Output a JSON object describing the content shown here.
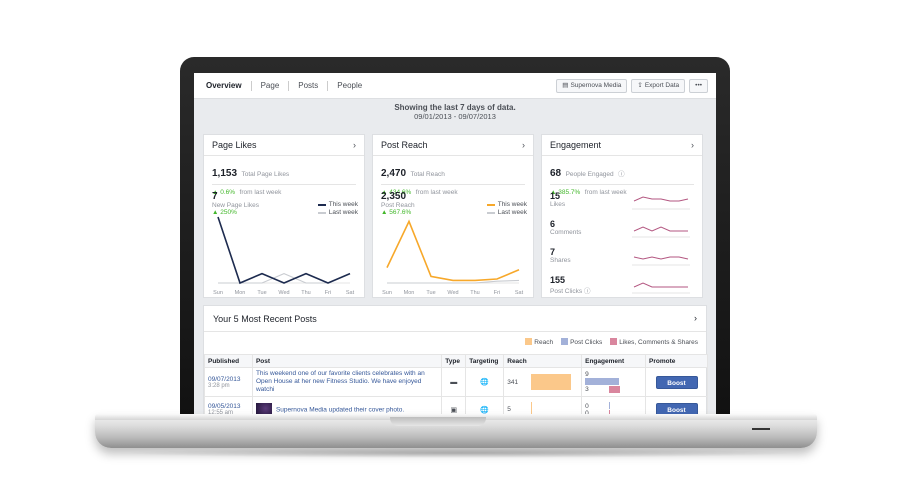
{
  "tabs": [
    "Overview",
    "Page",
    "Posts",
    "People"
  ],
  "tools": {
    "page_button": "Supernova Media",
    "export_button": "Export Data",
    "more": "•••"
  },
  "range": {
    "title": "Showing the last 7 days of data.",
    "dates": "09/01/2013 - 09/07/2013"
  },
  "page_likes": {
    "title": "Page Likes",
    "total": "1,153",
    "total_label": "Total Page Likes",
    "total_change": "▲ 0.6%",
    "total_change_suffix": "from last week",
    "new": "7",
    "new_label": "New Page Likes",
    "new_change": "▲ 250%",
    "legend_this": "This week",
    "legend_last": "Last week",
    "days": [
      "Sun",
      "Mon",
      "Tue",
      "Wed",
      "Thu",
      "Fri",
      "Sat"
    ],
    "this_week": [
      7,
      0,
      1,
      0,
      1,
      0,
      1
    ],
    "last_week": [
      0,
      0,
      0,
      1,
      0,
      0,
      1
    ],
    "ymax": 7,
    "colors": {
      "this": "#1d2b4f",
      "last": "#c9ccd1"
    }
  },
  "post_reach": {
    "title": "Post Reach",
    "total": "2,470",
    "total_label": "Total Reach",
    "total_change": "▲ 434.6%",
    "total_change_suffix": "from last week",
    "new": "2,350",
    "new_label": "Post Reach",
    "new_change": "▲ 567.6%",
    "legend_this": "This week",
    "legend_last": "Last week",
    "days": [
      "Sun",
      "Mon",
      "Tue",
      "Wed",
      "Thu",
      "Fri",
      "Sat"
    ],
    "this_week": [
      350,
      1400,
      150,
      60,
      60,
      90,
      300
    ],
    "last_week": [
      0,
      0,
      0,
      0,
      0,
      40,
      60
    ],
    "ymax": 1500,
    "colors": {
      "this": "#f7a82a",
      "last": "#c9ccd1"
    }
  },
  "engagement": {
    "title": "Engagement",
    "total": "68",
    "total_label": "People Engaged",
    "total_change": "▲ 385.7%",
    "total_change_suffix": "from last week",
    "metrics": [
      {
        "value": "15",
        "label": "Likes",
        "trend": [
          4,
          6,
          5,
          5,
          4,
          4,
          5
        ]
      },
      {
        "value": "6",
        "label": "Comments",
        "trend": [
          3,
          5,
          3,
          5,
          3,
          3,
          3
        ]
      },
      {
        "value": "7",
        "label": "Shares",
        "trend": [
          4,
          3,
          4,
          3,
          4,
          4,
          3
        ]
      },
      {
        "value": "155",
        "label": "Post Clicks",
        "trend": [
          3,
          5,
          3,
          3,
          3,
          3,
          3
        ]
      }
    ],
    "color": "#b35680"
  },
  "posts": {
    "title": "Your 5 Most Recent Posts",
    "legend": [
      {
        "label": "Reach",
        "color": "#fbc88a"
      },
      {
        "label": "Post Clicks",
        "color": "#a3b1d9"
      },
      {
        "label": "Likes, Comments & Shares",
        "color": "#d9869e"
      }
    ],
    "columns": [
      "Published",
      "Post",
      "Type",
      "Targeting",
      "Reach",
      "Engagement",
      "Promote"
    ],
    "rows": [
      {
        "date": "09/07/2013",
        "time": "3:28 pm",
        "text": "This weekend one of our favorite clients celebrates with an Open House at her new Fitness Studio. We have enjoyed watchi",
        "type": "status-icon",
        "targeting": "globe-icon",
        "reach": "341",
        "reach_fraction": 1.0,
        "eng1": "9",
        "eng2": "3",
        "eng1_fraction": 1.0,
        "eng2_fraction": 0.33,
        "boost": "Boost"
      },
      {
        "date": "09/05/2013",
        "time": "12:55 am",
        "text": "Supernova Media updated their cover photo.",
        "type": "photo-icon",
        "targeting": "globe-icon",
        "reach": "5",
        "reach_fraction": 0.015,
        "eng1": "0",
        "eng2": "0",
        "eng1_fraction": 0,
        "eng2_fraction": 0,
        "boost": "Boost"
      }
    ]
  }
}
